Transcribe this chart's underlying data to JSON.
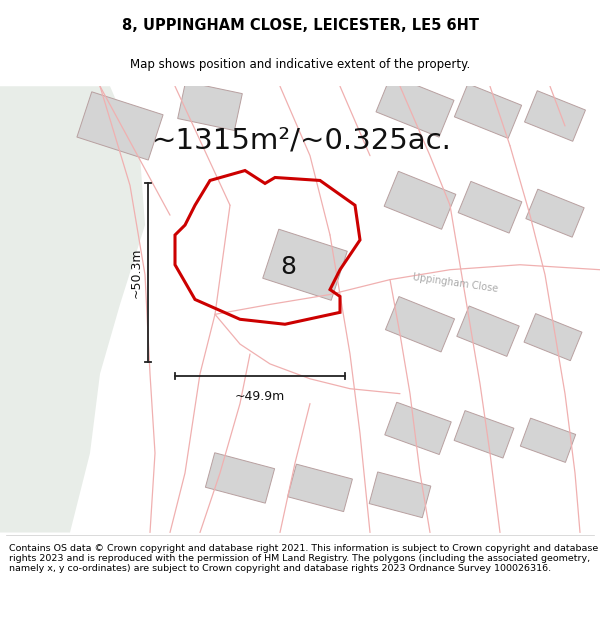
{
  "title": "8, UPPINGHAM CLOSE, LEICESTER, LE5 6HT",
  "subtitle": "Map shows position and indicative extent of the property.",
  "area_text": "~1315m²/~0.325ac.",
  "dim_vertical": "~50.3m",
  "dim_horizontal": "~49.9m",
  "label_number": "8",
  "road_label": "Uppingham Close",
  "footer": "Contains OS data © Crown copyright and database right 2021. This information is subject to Crown copyright and database rights 2023 and is reproduced with the permission of HM Land Registry. The polygons (including the associated geometry, namely x, y co-ordinates) are subject to Crown copyright and database rights 2023 Ordnance Survey 100026316.",
  "background_color": "#ffffff",
  "map_bg_color": "#f8f8f8",
  "green_area_color": "#e8ede8",
  "property_edge_color": "#cc0000",
  "road_color": "#f0b0b0",
  "building_fill": "#d4d4d4",
  "building_edge": "#b8a0a0",
  "dim_line_color": "#222222",
  "road_label_color": "#aaaaaa",
  "title_fontsize": 10.5,
  "subtitle_fontsize": 8.5,
  "area_fontsize": 21,
  "dim_fontsize": 9,
  "label_fontsize": 18,
  "footer_fontsize": 6.8
}
